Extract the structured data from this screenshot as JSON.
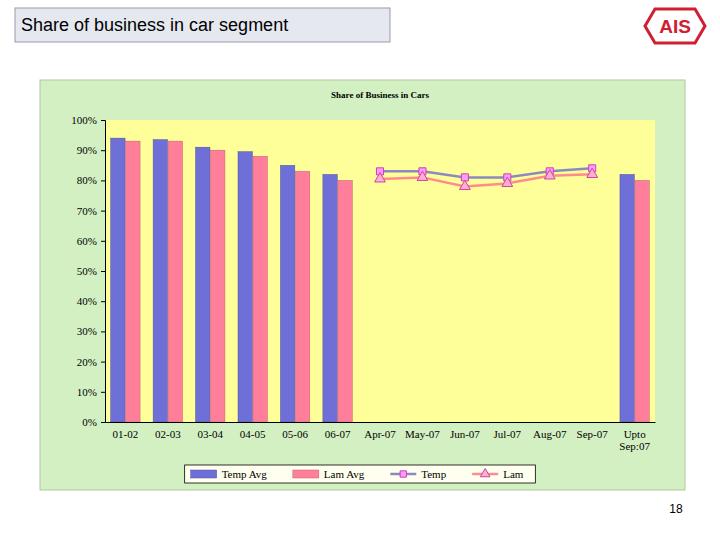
{
  "slide": {
    "title": "Share of business in car segment",
    "logo": "AIS",
    "page_number": 18
  },
  "chart_data": {
    "type": "bar",
    "title": "Share of Business in Cars",
    "categories": [
      "01-02",
      "02-03",
      "03-04",
      "04-05",
      "05-06",
      "06-07",
      "Apr-07",
      "May-07",
      "Jun-07",
      "Jul-07",
      "Aug-07",
      "Sep-07",
      "Upto Sep:07"
    ],
    "series": [
      {
        "name": "Temp Avg",
        "type": "bar",
        "color": "#6f6fd8",
        "values": [
          94,
          93.5,
          91,
          89.5,
          85,
          82,
          null,
          null,
          null,
          null,
          null,
          null,
          82
        ]
      },
      {
        "name": "Lam Avg",
        "type": "bar",
        "color": "#ff7f9a",
        "values": [
          93,
          93,
          90,
          88,
          83,
          80,
          null,
          null,
          null,
          null,
          null,
          null,
          80
        ]
      },
      {
        "name": "Temp",
        "type": "line",
        "color": "#8a8ac0",
        "marker": "square",
        "values": [
          null,
          null,
          null,
          null,
          null,
          null,
          83,
          83,
          81,
          81,
          83,
          84,
          null
        ]
      },
      {
        "name": "Lam",
        "type": "line",
        "color": "#ff8c8c",
        "marker": "triangle",
        "values": [
          null,
          null,
          null,
          null,
          null,
          null,
          80.5,
          81,
          78,
          79,
          81.5,
          82,
          null
        ]
      }
    ],
    "ylim": [
      0,
      100
    ],
    "yticks": [
      {
        "value": 0,
        "label": "0%"
      },
      {
        "value": 10,
        "label": "10%"
      },
      {
        "value": 20,
        "label": "20%"
      },
      {
        "value": 30,
        "label": "30%"
      },
      {
        "value": 40,
        "label": "40%"
      },
      {
        "value": 50,
        "label": "50%"
      },
      {
        "value": 60,
        "label": "60%"
      },
      {
        "value": 70,
        "label": "70%"
      },
      {
        "value": 80,
        "label": "80%"
      },
      {
        "value": 90,
        "label": "90%"
      },
      {
        "value": 100,
        "label": "100%"
      }
    ],
    "grid": false,
    "legend": "bottom"
  }
}
